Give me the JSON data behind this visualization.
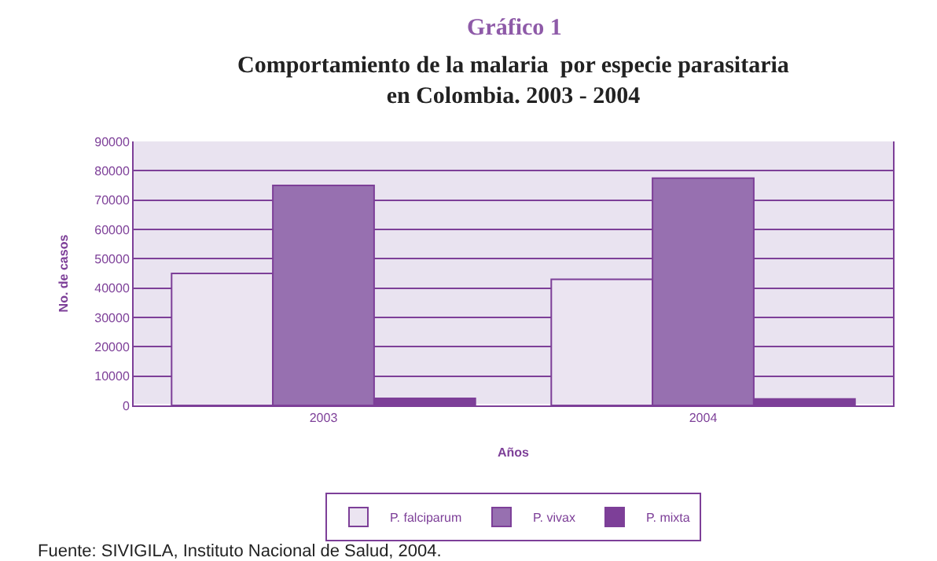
{
  "chart_data": {
    "type": "bar",
    "title": "Gráfico 1",
    "subtitle": "Comportamiento de la malaria  por especie parasitaria\nen Colombia. 2003 - 2004",
    "xlabel": "Años",
    "ylabel": "No. de casos",
    "categories": [
      "2003",
      "2004"
    ],
    "series": [
      {
        "name": "P. falciparum",
        "color": "#ebe4f1",
        "values": [
          45000,
          43000
        ]
      },
      {
        "name": "P. vivax",
        "color": "#9770b0",
        "values": [
          75000,
          77500
        ]
      },
      {
        "name": "P. mixta",
        "color": "#7d3f98",
        "values": [
          2400,
          2200
        ]
      }
    ],
    "ylim": [
      0,
      90000
    ],
    "yticks": [
      0,
      10000,
      20000,
      30000,
      40000,
      50000,
      60000,
      70000,
      80000,
      90000
    ],
    "grid": "y",
    "legend": "bottom",
    "annotations": [
      "Fuente: SIVIGILA, Instituto Nacional de Salud, 2004."
    ]
  }
}
